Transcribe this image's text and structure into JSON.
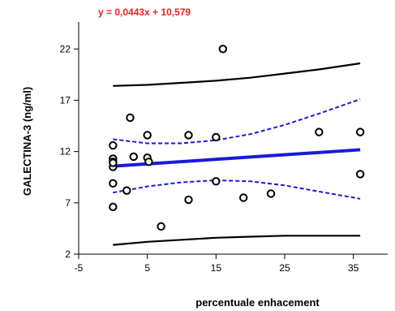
{
  "chart_data": {
    "type": "scatter",
    "title": "",
    "equation": "y = 0,0443x + 10,579",
    "xlabel": "percentuale enhacement",
    "ylabel": "GALECTINA-3 (ng/ml)",
    "xlim": [
      -5,
      40
    ],
    "ylim": [
      2,
      24
    ],
    "xticks": [
      -5,
      5,
      15,
      25,
      35
    ],
    "yticks": [
      2,
      7,
      12,
      17,
      22
    ],
    "grid": false,
    "colors": {
      "points": "#000000",
      "regression": "#1a1adb",
      "confidence": "#1a1adb",
      "prediction": "#000000",
      "equation": "#e8231e"
    },
    "points": {
      "x": [
        0,
        0,
        0,
        0,
        0,
        0,
        0,
        2,
        2.5,
        3,
        5,
        5,
        5.2,
        7,
        11,
        11,
        15,
        15,
        16,
        19,
        23,
        30,
        36,
        36
      ],
      "y": [
        12.6,
        11.3,
        11.0,
        10.5,
        8.9,
        6.6,
        10.9,
        8.2,
        15.3,
        11.5,
        11.4,
        13.6,
        11.0,
        4.7,
        7.3,
        13.6,
        13.4,
        9.1,
        22.0,
        7.5,
        7.9,
        13.9,
        13.9,
        9.8
      ]
    },
    "regression": {
      "slope": 0.0443,
      "intercept": 10.579,
      "x_range": [
        0,
        36
      ]
    },
    "confidence_band": {
      "x": [
        0,
        5,
        10,
        15,
        20,
        25,
        30,
        36
      ],
      "upper": [
        13.2,
        12.8,
        12.8,
        13.1,
        13.7,
        14.6,
        15.7,
        17.1
      ],
      "lower": [
        8.0,
        8.6,
        9.0,
        9.2,
        9.1,
        8.7,
        8.1,
        7.4
      ]
    },
    "prediction_band": {
      "x": [
        0,
        5,
        10,
        15,
        20,
        25,
        30,
        36
      ],
      "upper": [
        18.4,
        18.5,
        18.7,
        18.9,
        19.2,
        19.6,
        20.0,
        20.6
      ],
      "lower": [
        2.9,
        3.2,
        3.4,
        3.6,
        3.7,
        3.8,
        3.8,
        3.8
      ]
    }
  }
}
